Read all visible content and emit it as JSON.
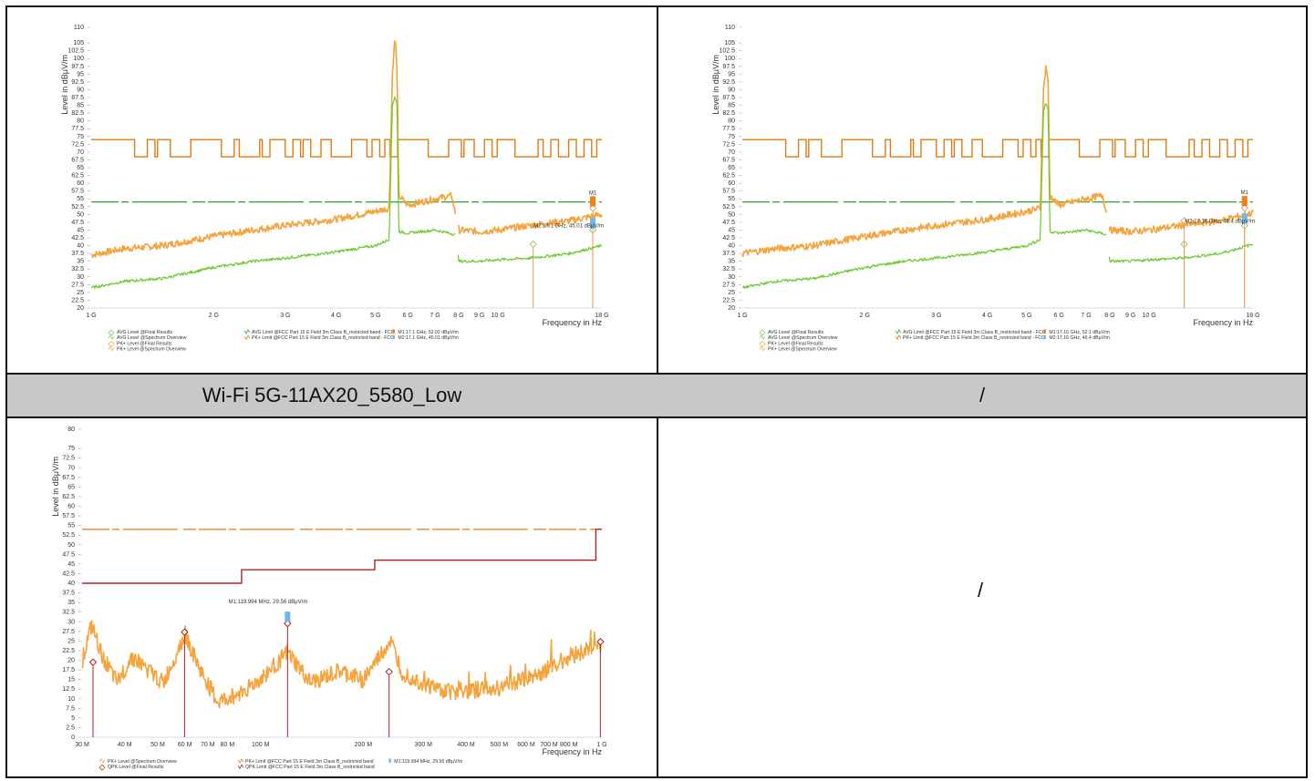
{
  "captions": {
    "row_left": "Wi-Fi 5G-11AX20_5580_Low",
    "row_right": "/",
    "bottom_right": "/"
  },
  "colors": {
    "pk_trace": "#f5a33a",
    "avg_trace": "#6cc92c",
    "pk_limit": "#e07a10",
    "avg_limit": "#2aa52a",
    "qpk_limit": "#b22222",
    "marker_blue": "#6fb8ea",
    "marker_orange": "#f07f14"
  },
  "chart_data": [
    {
      "type": "line",
      "id": "top-left",
      "ylabel": "Level in dBμV/m",
      "xlabel": "Frequency in Hz",
      "xscale": "log",
      "xlim": [
        1000000000,
        18000000000
      ],
      "ylim": [
        20,
        110
      ],
      "y_ticks": [
        "110",
        "105",
        "102.5",
        "100",
        "97.5",
        "95",
        "92.5",
        "90",
        "87.5",
        "85",
        "82.5",
        "80",
        "77.5",
        "75",
        "72.5",
        "70",
        "67.5",
        "65",
        "62.5",
        "60",
        "57.5",
        "55",
        "52.5",
        "50",
        "47.5",
        "45",
        "42.5",
        "40",
        "37.5",
        "35",
        "32.5",
        "30",
        "27.5",
        "25",
        "22.5",
        "20"
      ],
      "x_ticks": [
        {
          "label": "1 G",
          "value": 1000000000
        },
        {
          "label": "2 G",
          "value": 2000000000
        },
        {
          "label": "3 G",
          "value": 3000000000
        },
        {
          "label": "4 G",
          "value": 4000000000
        },
        {
          "label": "5 G",
          "value": 5000000000
        },
        {
          "label": "6 G",
          "value": 6000000000
        },
        {
          "label": "7 G",
          "value": 7000000000
        },
        {
          "label": "8 G",
          "value": 8000000000
        },
        {
          "label": "9 G",
          "value": 9000000000
        },
        {
          "label": "10 G",
          "value": 10000000000
        },
        {
          "label": "18 G",
          "value": 18000000000
        }
      ],
      "series": [
        {
          "name": "PK+ Level @Spectrum Overview",
          "x": [
            1000000000,
            1200000000,
            1500000000,
            2000000000,
            2500000000,
            3000000000,
            4000000000,
            5000000000,
            5400000000,
            5500000000,
            5580000000,
            5650000000,
            5700000000,
            6000000000,
            7000000000,
            7700000000,
            8000000000,
            9000000000,
            10000000000,
            12000000000,
            15000000000,
            18000000000
          ],
          "y": [
            37,
            39,
            40,
            43,
            45,
            46.5,
            48.5,
            51,
            52,
            95,
            107,
            96,
            56,
            53,
            55,
            56,
            45,
            44.5,
            45,
            46.5,
            48,
            50
          ]
        },
        {
          "name": "AVG Level @Spectrum Overview",
          "x": [
            1000000000,
            1200000000,
            1500000000,
            2000000000,
            2500000000,
            3000000000,
            4000000000,
            5000000000,
            5400000000,
            5500000000,
            5580000000,
            5650000000,
            5700000000,
            6000000000,
            7000000000,
            7900000000,
            8000000000,
            9000000000,
            10000000000,
            12000000000,
            15000000000,
            18000000000
          ],
          "y": [
            26.5,
            28.5,
            29.5,
            33,
            35,
            36,
            38,
            40,
            42,
            85,
            88,
            85,
            44.5,
            44,
            45,
            43.5,
            35,
            35,
            35.5,
            36,
            37.5,
            40
          ]
        },
        {
          "name": "AVG Limit @FCC Part 15 E Field 3m Class B_restricted band - FCC",
          "x": [
            1000000000,
            18000000000
          ],
          "y": [
            54,
            54
          ]
        },
        {
          "name": "PK+ Limit @FCC Part 15 E Field 3m Class B_restricted band - FCC",
          "x": [
            1000000000,
            18000000000
          ],
          "y": [
            74,
            74
          ]
        }
      ],
      "final_results": [
        {
          "type": "AVG",
          "x": 12200000000,
          "y": 40.5
        },
        {
          "type": "AVG",
          "x": 17100000000,
          "y": 45.01
        },
        {
          "type": "PK+",
          "x": 17100000000,
          "y": 52.02
        }
      ],
      "markers": [
        {
          "label": "M1",
          "text": "M1:17.1 GHz, 52.02 dBμV/m",
          "x": 17100000000,
          "y": 52.02
        },
        {
          "label": "M2",
          "text": "M2:17.1 GHz, 45.01 dBμV/m",
          "x": 17100000000,
          "y": 45.01
        }
      ],
      "marker_callout": "M2:17.1 GHz, 45.01 dBμV/m",
      "legend": [
        "AVG Level @Final Results",
        "AVG Level @Spectrum Overview",
        "PK+ Level @Final Results",
        "PK+ Level @Spectrum Overview",
        "AVG Limit @FCC Part 15 E Field 3m Class B_restricted band - FCC",
        "PK+ Limit @FCC Part 15 E Field 3m Class B_restricted band - FCC",
        "M1:17.1 GHz, 52.02 dBμV/m",
        "M2:17.1 GHz, 45.01 dBμV/m"
      ]
    },
    {
      "type": "line",
      "id": "top-right",
      "ylabel": "Level in dBμV/m",
      "xlabel": "Frequency in Hz",
      "xscale": "log",
      "xlim": [
        1000000000,
        18000000000
      ],
      "ylim": [
        20,
        110
      ],
      "y_ticks": [
        "110",
        "105",
        "102.5",
        "100",
        "97.5",
        "95",
        "92.5",
        "90",
        "87.5",
        "85",
        "82.5",
        "80",
        "77.5",
        "75",
        "72.5",
        "70",
        "67.5",
        "65",
        "62.5",
        "60",
        "57.5",
        "55",
        "52.5",
        "50",
        "47.5",
        "45",
        "42.5",
        "40",
        "37.5",
        "35",
        "32.5",
        "30",
        "27.5",
        "25",
        "22.5",
        "20"
      ],
      "x_ticks": [
        {
          "label": "1 G",
          "value": 1000000000
        },
        {
          "label": "2 G",
          "value": 2000000000
        },
        {
          "label": "3 G",
          "value": 3000000000
        },
        {
          "label": "4 G",
          "value": 4000000000
        },
        {
          "label": "5 G",
          "value": 5000000000
        },
        {
          "label": "6 G",
          "value": 6000000000
        },
        {
          "label": "7 G",
          "value": 7000000000
        },
        {
          "label": "8 G",
          "value": 8000000000
        },
        {
          "label": "9 G",
          "value": 9000000000
        },
        {
          "label": "10 G",
          "value": 10000000000
        },
        {
          "label": "18 G",
          "value": 18000000000
        }
      ],
      "series": [
        {
          "name": "PK+ Level @Spectrum Overview",
          "x": [
            1000000000,
            1200000000,
            1500000000,
            2000000000,
            2500000000,
            3000000000,
            4000000000,
            5000000000,
            5400000000,
            5500000000,
            5580000000,
            5650000000,
            5700000000,
            6000000000,
            7000000000,
            7700000000,
            8000000000,
            9000000000,
            10000000000,
            12000000000,
            15000000000,
            18000000000
          ],
          "y": [
            37.5,
            39,
            40,
            43,
            45,
            46.5,
            48.5,
            51,
            52,
            90,
            98,
            92,
            56,
            53,
            55,
            56,
            45,
            44.5,
            45,
            46.5,
            48,
            50.5
          ]
        },
        {
          "name": "AVG Level @Spectrum Overview",
          "x": [
            1000000000,
            1200000000,
            1500000000,
            2000000000,
            2500000000,
            3000000000,
            4000000000,
            5000000000,
            5400000000,
            5500000000,
            5580000000,
            5650000000,
            5700000000,
            6000000000,
            7000000000,
            7900000000,
            8000000000,
            9000000000,
            10000000000,
            12000000000,
            15000000000,
            18000000000
          ],
          "y": [
            26.5,
            28.5,
            29.5,
            33,
            35,
            36,
            38,
            40,
            42,
            83,
            86,
            83,
            44.5,
            44,
            45,
            43.5,
            35,
            35,
            35.5,
            36,
            37.5,
            40.5
          ]
        },
        {
          "name": "AVG Limit @FCC Part 15 E Field 3m Class B_restricted band - FCC",
          "x": [
            1000000000,
            18000000000
          ],
          "y": [
            54,
            54
          ]
        },
        {
          "name": "PK+ Limit @FCC Part 15 E Field 3m Class B_restricted band - FCC",
          "x": [
            1000000000,
            18000000000
          ],
          "y": [
            74,
            74
          ]
        }
      ],
      "final_results": [
        {
          "type": "AVG",
          "x": 12200000000,
          "y": 40.5
        },
        {
          "type": "PK+",
          "x": 12200000000,
          "y": 48
        },
        {
          "type": "AVG",
          "x": 17160000000,
          "y": 46.4
        },
        {
          "type": "PK+",
          "x": 17160000000,
          "y": 52.1
        }
      ],
      "markers": [
        {
          "label": "M1",
          "text": "M1:17.16 GHz, 52.1 dBμV/m",
          "x": 17160000000,
          "y": 52.1
        },
        {
          "label": "M2",
          "text": "M2:17.16 GHz, 46.4 dBμV/m",
          "x": 17160000000,
          "y": 46.4
        }
      ],
      "marker_callout": "M2:17.16 GHz, 46.4 dBμV/m",
      "legend": [
        "AVG Level @Final Results",
        "AVG Level @Spectrum Overview",
        "PK+ Level @Final Results",
        "PK+ Level @Spectrum Overview",
        "AVG Limit @FCC Part 15 E Field 3m Class B_restricted band - FCC",
        "PK+ Limit @FCC Part 15 E Field 3m Class B_restricted band - FCC",
        "M1:17.16 GHz, 52.1 dBμV/m",
        "M2:17.16 GHz, 46.4 dBμV/m"
      ]
    },
    {
      "type": "line",
      "id": "bottom-left",
      "ylabel": "Level in dBμV/m",
      "xlabel": "Frequency in Hz",
      "xscale": "log",
      "xlim": [
        30000000,
        1000000000
      ],
      "ylim": [
        0,
        80
      ],
      "y_ticks": [
        "80",
        "75",
        "72.5",
        "70",
        "67.5",
        "65",
        "62.5",
        "60",
        "57.5",
        "55",
        "52.5",
        "50",
        "47.5",
        "45",
        "42.5",
        "40",
        "37.5",
        "35",
        "32.5",
        "30",
        "27.5",
        "25",
        "22.5",
        "20",
        "17.5",
        "15",
        "12.5",
        "10",
        "7.5",
        "5",
        "2.5",
        "0"
      ],
      "x_ticks": [
        {
          "label": "30 M",
          "value": 30000000
        },
        {
          "label": "40 M",
          "value": 40000000
        },
        {
          "label": "50 M",
          "value": 50000000
        },
        {
          "label": "60 M",
          "value": 60000000
        },
        {
          "label": "70 M",
          "value": 70000000
        },
        {
          "label": "80 M",
          "value": 80000000
        },
        {
          "label": "100 M",
          "value": 100000000
        },
        {
          "label": "200 M",
          "value": 200000000
        },
        {
          "label": "300 M",
          "value": 300000000
        },
        {
          "label": "400 M",
          "value": 400000000
        },
        {
          "label": "500 M",
          "value": 500000000
        },
        {
          "label": "600 M",
          "value": 600000000
        },
        {
          "label": "700 M",
          "value": 700000000
        },
        {
          "label": "800 M",
          "value": 800000000
        },
        {
          "label": "1 G",
          "value": 1000000000
        }
      ],
      "series": [
        {
          "name": "PK+ Level @Spectrum Overview",
          "x": [
            30000000,
            32000000,
            34000000,
            38000000,
            42000000,
            46000000,
            52000000,
            60000000,
            66000000,
            75000000,
            85000000,
            100000000,
            120000000,
            140000000,
            170000000,
            200000000,
            240000000,
            260000000,
            300000000,
            350000000,
            400000000,
            500000000,
            600000000,
            700000000,
            800000000,
            1000000000
          ],
          "y": [
            20,
            29,
            22,
            14,
            21,
            18,
            14,
            27,
            18,
            9,
            11,
            15,
            22,
            14,
            17,
            15,
            25,
            17,
            14,
            12,
            12,
            13,
            15,
            18,
            21,
            24
          ]
        },
        {
          "name": "PK+ Limit @FCC Part 15 E Field 3m Class B_restricted band",
          "x": [
            30000000,
            88000000,
            88000000,
            216000000,
            216000000,
            960000000,
            960000000,
            1000000000
          ],
          "y": [
            40,
            40,
            43.5,
            43.5,
            46,
            46,
            54,
            54
          ]
        },
        {
          "name": "QPK Limit @FCC Part 15 E Field 3m Class B_restricted band",
          "x": [
            30000000,
            88000000,
            88000000,
            216000000,
            216000000,
            960000000,
            960000000,
            1000000000
          ],
          "y": [
            40,
            40,
            43.5,
            43.5,
            46,
            46,
            54,
            54
          ]
        }
      ],
      "final_results": [
        {
          "type": "QPK",
          "x": 32300000,
          "y": 19.5
        },
        {
          "type": "QPK",
          "x": 59900000,
          "y": 27.3
        },
        {
          "type": "QPK",
          "x": 119994000,
          "y": 29.56
        },
        {
          "type": "QPK",
          "x": 238000000,
          "y": 17
        },
        {
          "type": "QPK",
          "x": 990000000,
          "y": 24.8
        }
      ],
      "markers": [
        {
          "label": "M1",
          "text": "M1:119.994 MHz, 29.56 dBμV/m",
          "x": 119994000,
          "y": 29.56
        }
      ],
      "marker_callout": "M1:119.994 MHz, 29.56 dBμV/m",
      "legend": [
        "PK+ Level @Spectrum Overview",
        "QPK Level @Final Results",
        "PK+ Limit @FCC Part 15 E Field 3m Class B_restricted band",
        "QPK Limit @FCC Part 15 E Field 3m Class B_restricted band",
        "M1:119.994 MHz, 29.56 dBμV/m"
      ]
    }
  ]
}
